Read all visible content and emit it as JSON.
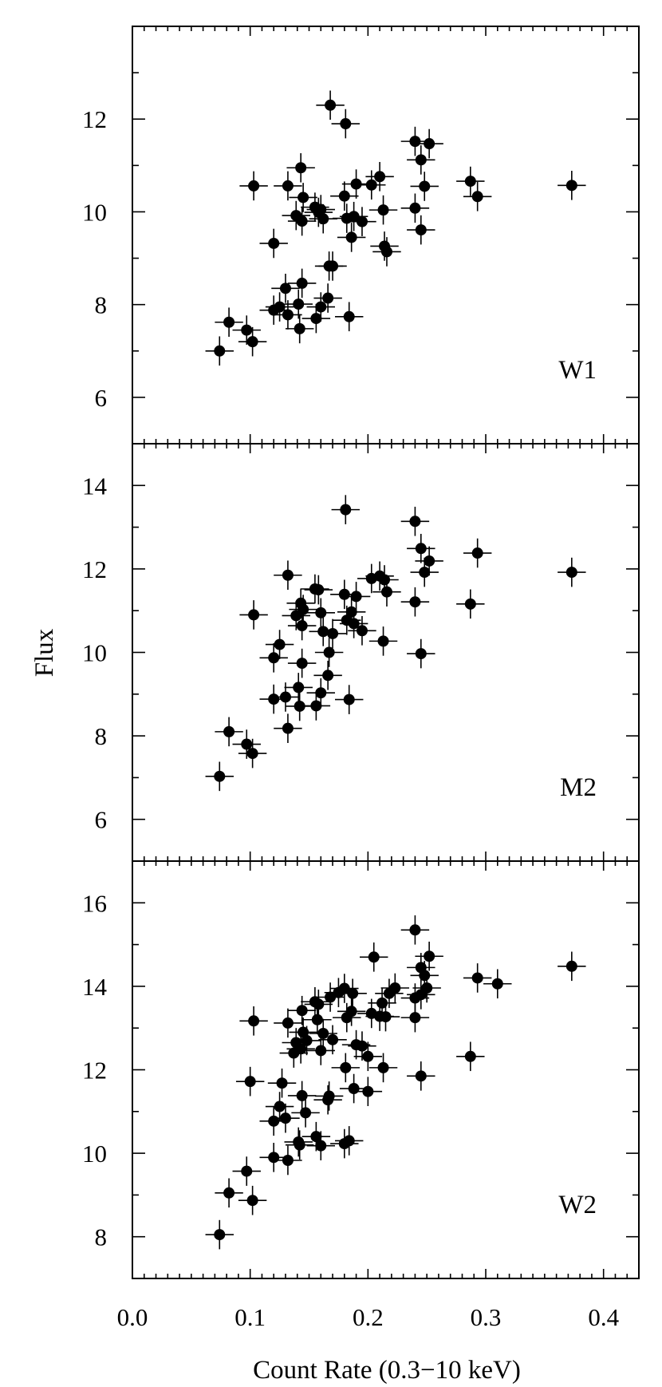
{
  "chart_data": [
    {
      "type": "scatter",
      "panel_label": "W1",
      "ylabel": "",
      "ylim": [
        5,
        14
      ],
      "yticks": [
        "6",
        "8",
        "10",
        "12"
      ],
      "points": [
        {
          "x": 0.074,
          "y": 7.0
        },
        {
          "x": 0.082,
          "y": 7.62
        },
        {
          "x": 0.097,
          "y": 7.45
        },
        {
          "x": 0.102,
          "y": 7.2
        },
        {
          "x": 0.103,
          "y": 10.56
        },
        {
          "x": 0.12,
          "y": 9.32
        },
        {
          "x": 0.12,
          "y": 7.88
        },
        {
          "x": 0.125,
          "y": 7.95
        },
        {
          "x": 0.13,
          "y": 8.35
        },
        {
          "x": 0.132,
          "y": 7.78
        },
        {
          "x": 0.132,
          "y": 10.56
        },
        {
          "x": 0.139,
          "y": 9.92
        },
        {
          "x": 0.141,
          "y": 8.01
        },
        {
          "x": 0.142,
          "y": 7.48
        },
        {
          "x": 0.143,
          "y": 10.95
        },
        {
          "x": 0.144,
          "y": 9.8
        },
        {
          "x": 0.144,
          "y": 8.46
        },
        {
          "x": 0.145,
          "y": 10.31
        },
        {
          "x": 0.155,
          "y": 10.1
        },
        {
          "x": 0.156,
          "y": 7.7
        },
        {
          "x": 0.158,
          "y": 9.99
        },
        {
          "x": 0.16,
          "y": 10.05
        },
        {
          "x": 0.16,
          "y": 7.95
        },
        {
          "x": 0.162,
          "y": 9.85
        },
        {
          "x": 0.166,
          "y": 8.14
        },
        {
          "x": 0.167,
          "y": 8.83
        },
        {
          "x": 0.168,
          "y": 12.3
        },
        {
          "x": 0.17,
          "y": 8.83
        },
        {
          "x": 0.18,
          "y": 10.34
        },
        {
          "x": 0.181,
          "y": 11.9
        },
        {
          "x": 0.182,
          "y": 9.86
        },
        {
          "x": 0.184,
          "y": 7.74
        },
        {
          "x": 0.186,
          "y": 9.45
        },
        {
          "x": 0.188,
          "y": 9.9
        },
        {
          "x": 0.19,
          "y": 10.6
        },
        {
          "x": 0.195,
          "y": 9.79
        },
        {
          "x": 0.203,
          "y": 10.58
        },
        {
          "x": 0.21,
          "y": 10.76
        },
        {
          "x": 0.213,
          "y": 10.04
        },
        {
          "x": 0.214,
          "y": 9.26
        },
        {
          "x": 0.216,
          "y": 9.14
        },
        {
          "x": 0.24,
          "y": 11.52
        },
        {
          "x": 0.24,
          "y": 10.08
        },
        {
          "x": 0.245,
          "y": 11.12
        },
        {
          "x": 0.245,
          "y": 9.61
        },
        {
          "x": 0.248,
          "y": 10.55
        },
        {
          "x": 0.252,
          "y": 11.47
        },
        {
          "x": 0.287,
          "y": 10.66
        },
        {
          "x": 0.293,
          "y": 10.33
        },
        {
          "x": 0.373,
          "y": 10.57
        }
      ]
    },
    {
      "type": "scatter",
      "panel_label": "M2",
      "ylabel": "Flux",
      "ylim": [
        5,
        15
      ],
      "yticks": [
        "6",
        "8",
        "10",
        "12",
        "14"
      ],
      "points": [
        {
          "x": 0.074,
          "y": 7.03
        },
        {
          "x": 0.082,
          "y": 8.1
        },
        {
          "x": 0.097,
          "y": 7.8
        },
        {
          "x": 0.102,
          "y": 7.58
        },
        {
          "x": 0.103,
          "y": 10.9
        },
        {
          "x": 0.12,
          "y": 9.87
        },
        {
          "x": 0.12,
          "y": 8.88
        },
        {
          "x": 0.125,
          "y": 10.19
        },
        {
          "x": 0.13,
          "y": 8.93
        },
        {
          "x": 0.132,
          "y": 8.18
        },
        {
          "x": 0.132,
          "y": 11.85
        },
        {
          "x": 0.139,
          "y": 10.88
        },
        {
          "x": 0.141,
          "y": 9.16
        },
        {
          "x": 0.142,
          "y": 8.71
        },
        {
          "x": 0.143,
          "y": 11.18
        },
        {
          "x": 0.144,
          "y": 10.64
        },
        {
          "x": 0.144,
          "y": 9.74
        },
        {
          "x": 0.145,
          "y": 11.03
        },
        {
          "x": 0.155,
          "y": 11.52
        },
        {
          "x": 0.156,
          "y": 8.72
        },
        {
          "x": 0.158,
          "y": 11.5
        },
        {
          "x": 0.16,
          "y": 10.95
        },
        {
          "x": 0.16,
          "y": 9.03
        },
        {
          "x": 0.162,
          "y": 10.5
        },
        {
          "x": 0.166,
          "y": 9.45
        },
        {
          "x": 0.167,
          "y": 10.0
        },
        {
          "x": 0.17,
          "y": 10.45
        },
        {
          "x": 0.18,
          "y": 11.39
        },
        {
          "x": 0.181,
          "y": 13.42
        },
        {
          "x": 0.182,
          "y": 10.77
        },
        {
          "x": 0.184,
          "y": 8.87
        },
        {
          "x": 0.186,
          "y": 10.97
        },
        {
          "x": 0.188,
          "y": 10.69
        },
        {
          "x": 0.19,
          "y": 11.34
        },
        {
          "x": 0.195,
          "y": 10.52
        },
        {
          "x": 0.203,
          "y": 11.77
        },
        {
          "x": 0.21,
          "y": 11.83
        },
        {
          "x": 0.213,
          "y": 10.27
        },
        {
          "x": 0.214,
          "y": 11.74
        },
        {
          "x": 0.216,
          "y": 11.45
        },
        {
          "x": 0.24,
          "y": 13.14
        },
        {
          "x": 0.24,
          "y": 11.21
        },
        {
          "x": 0.245,
          "y": 12.49
        },
        {
          "x": 0.245,
          "y": 9.97
        },
        {
          "x": 0.248,
          "y": 11.92
        },
        {
          "x": 0.252,
          "y": 12.19
        },
        {
          "x": 0.287,
          "y": 11.16
        },
        {
          "x": 0.293,
          "y": 12.38
        },
        {
          "x": 0.373,
          "y": 11.92
        }
      ]
    },
    {
      "type": "scatter",
      "panel_label": "W2",
      "ylabel": "",
      "xlabel": "Count Rate (0.3−10 keV)",
      "xlim": [
        0.0,
        0.43
      ],
      "ylim": [
        7,
        17
      ],
      "xticks": [
        "0.0",
        "0.1",
        "0.2",
        "0.3",
        "0.4"
      ],
      "yticks": [
        "8",
        "10",
        "12",
        "14",
        "16"
      ],
      "points": [
        {
          "x": 0.074,
          "y": 8.05
        },
        {
          "x": 0.082,
          "y": 9.05
        },
        {
          "x": 0.097,
          "y": 9.57
        },
        {
          "x": 0.1,
          "y": 11.72
        },
        {
          "x": 0.102,
          "y": 8.87
        },
        {
          "x": 0.103,
          "y": 13.17
        },
        {
          "x": 0.12,
          "y": 9.9
        },
        {
          "x": 0.12,
          "y": 10.77
        },
        {
          "x": 0.125,
          "y": 11.12
        },
        {
          "x": 0.127,
          "y": 11.68
        },
        {
          "x": 0.13,
          "y": 10.84
        },
        {
          "x": 0.132,
          "y": 9.83
        },
        {
          "x": 0.132,
          "y": 13.12
        },
        {
          "x": 0.137,
          "y": 12.4
        },
        {
          "x": 0.139,
          "y": 12.65
        },
        {
          "x": 0.141,
          "y": 10.27
        },
        {
          "x": 0.142,
          "y": 10.2
        },
        {
          "x": 0.143,
          "y": 12.5
        },
        {
          "x": 0.144,
          "y": 13.42
        },
        {
          "x": 0.144,
          "y": 11.38
        },
        {
          "x": 0.145,
          "y": 12.9
        },
        {
          "x": 0.147,
          "y": 10.97
        },
        {
          "x": 0.148,
          "y": 12.7
        },
        {
          "x": 0.155,
          "y": 13.63
        },
        {
          "x": 0.156,
          "y": 10.4
        },
        {
          "x": 0.157,
          "y": 13.2
        },
        {
          "x": 0.158,
          "y": 13.57
        },
        {
          "x": 0.16,
          "y": 10.18
        },
        {
          "x": 0.16,
          "y": 12.46
        },
        {
          "x": 0.162,
          "y": 12.87
        },
        {
          "x": 0.166,
          "y": 11.28
        },
        {
          "x": 0.167,
          "y": 11.37
        },
        {
          "x": 0.168,
          "y": 13.74
        },
        {
          "x": 0.17,
          "y": 12.72
        },
        {
          "x": 0.175,
          "y": 13.85
        },
        {
          "x": 0.18,
          "y": 10.23
        },
        {
          "x": 0.18,
          "y": 13.95
        },
        {
          "x": 0.181,
          "y": 12.05
        },
        {
          "x": 0.182,
          "y": 13.25
        },
        {
          "x": 0.184,
          "y": 10.3
        },
        {
          "x": 0.186,
          "y": 13.4
        },
        {
          "x": 0.187,
          "y": 13.83
        },
        {
          "x": 0.188,
          "y": 11.55
        },
        {
          "x": 0.19,
          "y": 12.6
        },
        {
          "x": 0.195,
          "y": 12.57
        },
        {
          "x": 0.2,
          "y": 11.48
        },
        {
          "x": 0.2,
          "y": 12.32
        },
        {
          "x": 0.203,
          "y": 13.35
        },
        {
          "x": 0.205,
          "y": 14.7
        },
        {
          "x": 0.21,
          "y": 13.28
        },
        {
          "x": 0.212,
          "y": 13.6
        },
        {
          "x": 0.213,
          "y": 12.05
        },
        {
          "x": 0.215,
          "y": 13.27
        },
        {
          "x": 0.218,
          "y": 13.83
        },
        {
          "x": 0.223,
          "y": 13.96
        },
        {
          "x": 0.24,
          "y": 15.35
        },
        {
          "x": 0.24,
          "y": 13.72
        },
        {
          "x": 0.24,
          "y": 13.25
        },
        {
          "x": 0.245,
          "y": 14.45
        },
        {
          "x": 0.245,
          "y": 13.8
        },
        {
          "x": 0.245,
          "y": 11.85
        },
        {
          "x": 0.248,
          "y": 14.26
        },
        {
          "x": 0.25,
          "y": 13.96
        },
        {
          "x": 0.252,
          "y": 14.72
        },
        {
          "x": 0.287,
          "y": 12.32
        },
        {
          "x": 0.293,
          "y": 14.2
        },
        {
          "x": 0.31,
          "y": 14.06
        },
        {
          "x": 0.373,
          "y": 14.48
        }
      ]
    }
  ]
}
